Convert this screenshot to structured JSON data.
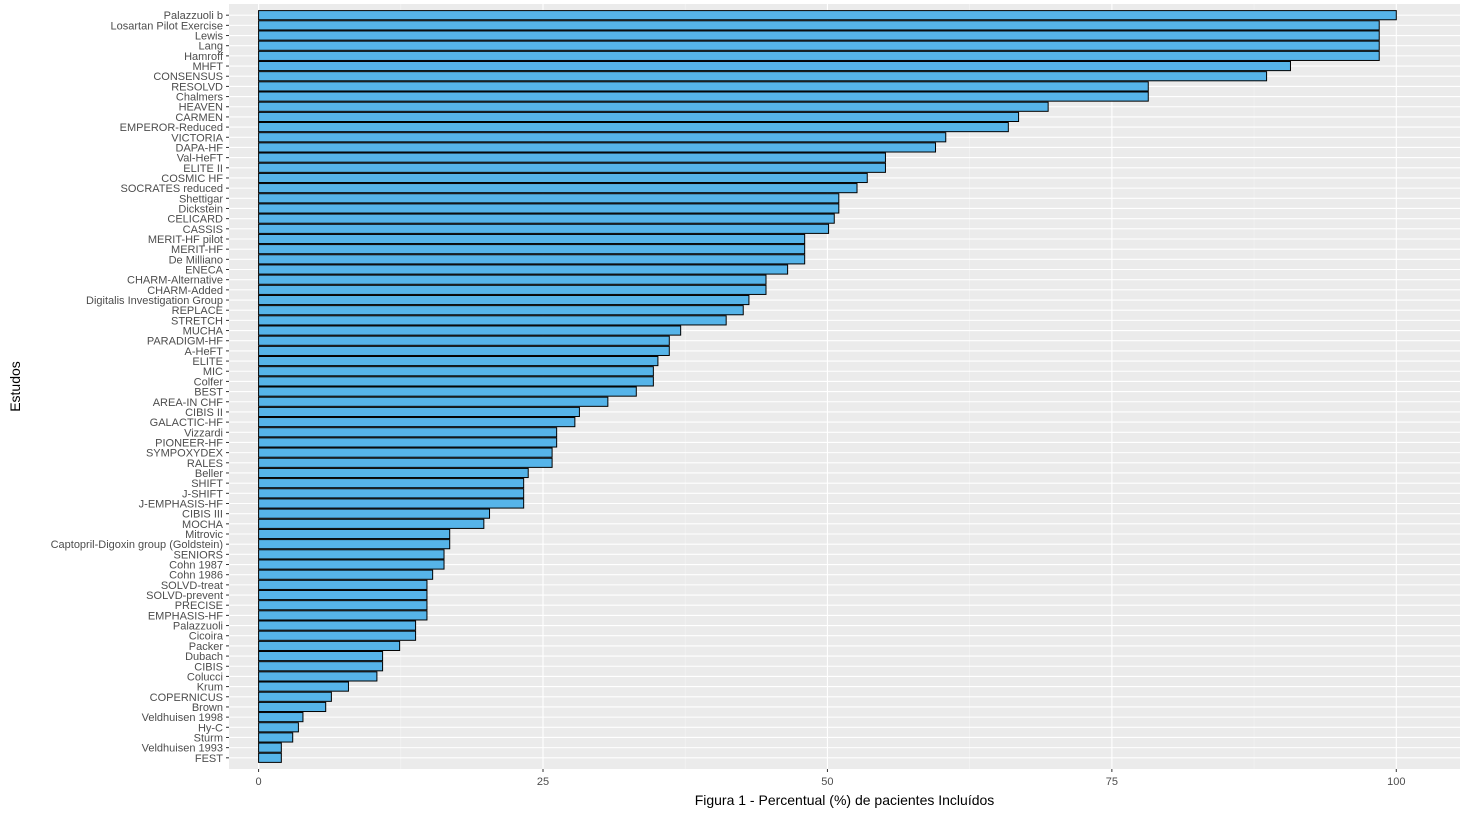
{
  "chart_data": {
    "type": "bar",
    "orientation": "horizontal",
    "xlabel": "Figura 1 - Percentual (%) de pacientes Incluídos",
    "ylabel": "Estudos",
    "xlim": [
      -2.6,
      105.6
    ],
    "xticks": [
      0,
      25,
      50,
      75,
      100
    ],
    "grid": true,
    "legend": "none",
    "colors": {
      "bar_fill": "#56b4e9",
      "bar_stroke": "#000000",
      "panel_bg": "#ebebeb",
      "grid_major": "#ffffff",
      "grid_minor": "#f5f5f5",
      "text": "#4d4d4d"
    },
    "categories": [
      "Palazzuoli b",
      "Losartan Pilot Exercise",
      "Lewis",
      "Lang",
      "Hamroff",
      "MHFT",
      "CONSENSUS",
      "RESOLVD",
      "Chalmers",
      "HEAVEN",
      "CARMEN",
      "EMPEROR-Reduced",
      "VICTORIA",
      "DAPA-HF",
      "Val-HeFT",
      "ELITE II",
      "COSMIC HF",
      "SOCRATES reduced",
      "Shettigar",
      "Dickstein",
      "CELICARD",
      "CASSIS",
      "MERIT-HF pilot",
      "MERIT-HF",
      "De Milliano",
      "ENECA",
      "CHARM-Alternative",
      "CHARM-Added",
      "Digitalis Investigation Group",
      "REPLACE",
      "STRETCH",
      "MUCHA",
      "PARADIGM-HF",
      "A-HeFT",
      "ELITE",
      "MIC",
      "Colfer",
      "BEST",
      "AREA-IN CHF",
      "CIBIS II",
      "GALACTIC-HF",
      "Vizzardi",
      "PIONEER-HF",
      "SYMPOXYDEX",
      "RALES",
      "Beller",
      "SHIFT",
      "J-SHIFT",
      "J-EMPHASIS-HF",
      "CIBIS III",
      "MOCHA",
      "Mitrovic",
      "Captopril-Digoxin group (Goldstein)",
      "SENIORS",
      "Cohn 1987",
      "Cohn 1986",
      "SOLVD-treat",
      "SOLVD-prevent",
      "PRECISE",
      "EMPHASIS-HF",
      "Palazzuoli",
      "Cicoira",
      "Packer",
      "Dubach",
      "CIBIS",
      "Colucci",
      "Krum",
      "COPERNICUS",
      "Brown",
      "Veldhuisen 1998",
      "Hy-C",
      "Sturm",
      "Veldhuisen 1993",
      "FEST"
    ],
    "values": [
      100,
      98.5,
      98.5,
      98.5,
      98.5,
      90.7,
      88.6,
      78.2,
      78.2,
      69.4,
      66.8,
      65.9,
      60.4,
      59.5,
      55.1,
      55.1,
      53.5,
      52.6,
      51.0,
      51.0,
      50.6,
      50.1,
      48.0,
      48.0,
      48.0,
      46.5,
      44.6,
      44.6,
      43.1,
      42.6,
      41.1,
      37.1,
      36.1,
      36.1,
      35.1,
      34.7,
      34.7,
      33.2,
      30.7,
      28.2,
      27.8,
      26.2,
      26.2,
      25.8,
      25.8,
      23.7,
      23.3,
      23.3,
      23.3,
      20.3,
      19.8,
      16.8,
      16.8,
      16.3,
      16.3,
      15.3,
      14.8,
      14.8,
      14.8,
      14.8,
      13.8,
      13.8,
      12.4,
      10.9,
      10.9,
      10.4,
      7.9,
      6.4,
      5.9,
      3.9,
      3.5,
      3.0,
      2.0,
      2.0
    ]
  }
}
